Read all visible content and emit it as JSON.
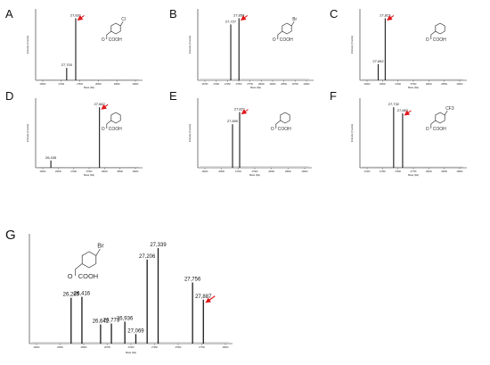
{
  "colors": {
    "peak": "#1a1a1a",
    "arrow": "#e0161c",
    "axis": "#222222",
    "label": "#111111",
    "structure": "#333333"
  },
  "chart_data": [
    {
      "panel": "A",
      "type": "bar",
      "xlabel": "Mass (Da)",
      "ylabel": "Intensity (Counts)",
      "xlim": [
        27250,
        28800
      ],
      "ylim": [
        0,
        1.15
      ],
      "ticks": [
        "26500",
        "27000",
        "27500",
        "28000",
        "28500",
        "29000"
      ],
      "structure_label": "COOH",
      "substituent": "Cl",
      "peaks": [
        {
          "x": 27700,
          "y": 0.2,
          "label": "27,700"
        },
        {
          "x": 27831,
          "y": 1.0,
          "label": "27,831",
          "arrow": true
        }
      ]
    },
    {
      "panel": "B",
      "type": "bar",
      "xlabel": "Mass (Da)",
      "ylabel": "Intensity (Counts)",
      "xlim": [
        27200,
        29050
      ],
      "ylim": [
        0,
        1.15
      ],
      "ticks": [
        "26750",
        "27000",
        "27250",
        "27500",
        "27750",
        "28000",
        "28250",
        "28500",
        "28750",
        "29000"
      ],
      "structure_label": "COOH",
      "substituent": "Br",
      "peaks": [
        {
          "x": 27727,
          "y": 0.9,
          "label": "27,727"
        },
        {
          "x": 27858,
          "y": 1.0,
          "label": "27,858",
          "arrow": true
        }
      ]
    },
    {
      "panel": "C",
      "type": "bar",
      "xlabel": "Mass (Da)",
      "ylabel": "Intensity (Counts)",
      "xlim": [
        27350,
        29350
      ],
      "ylim": [
        0,
        1.15
      ],
      "ticks": [
        "26000",
        "26500",
        "27000",
        "27500",
        "28000",
        "28500",
        "29000"
      ],
      "structure_label": "COOH",
      "substituent": "",
      "peaks": [
        {
          "x": 27692,
          "y": 0.26,
          "label": "27,692"
        },
        {
          "x": 27823,
          "y": 1.0,
          "label": "27,823",
          "arrow": true
        }
      ]
    },
    {
      "panel": "D",
      "type": "bar",
      "xlabel": "Mass (Da)",
      "ylabel": "Intensity (Counts)",
      "xlim": [
        26050,
        28750
      ],
      "ylim": [
        0,
        1.15
      ],
      "ticks": [
        "26000",
        "26500",
        "27000",
        "27500",
        "28000",
        "28500",
        "29000"
      ],
      "structure_label": "COOH",
      "substituent": "",
      "peaks": [
        {
          "x": 26435,
          "y": 0.12,
          "label": "26,435"
        },
        {
          "x": 27662,
          "y": 1.0,
          "label": "27,662",
          "arrow": true
        }
      ]
    },
    {
      "panel": "E",
      "type": "bar",
      "xlabel": "Mass (Da)",
      "ylabel": "Intensity (Counts)",
      "xlim": [
        27050,
        29150
      ],
      "ylim": [
        0,
        1.15
      ],
      "ticks": [
        "26000",
        "26500",
        "27000",
        "27500",
        "28000",
        "28500",
        "29000"
      ],
      "structure_label": "COOH",
      "substituent": "",
      "peaks": [
        {
          "x": 27690,
          "y": 0.72,
          "label": "27,690"
        },
        {
          "x": 27821,
          "y": 0.92,
          "label": "27,821",
          "arrow": true
        }
      ]
    },
    {
      "panel": "F",
      "type": "bar",
      "xlabel": "Mass (Da)",
      "ylabel": "Intensity (Counts)",
      "xlim": [
        27240,
        28800
      ],
      "ylim": [
        0,
        1.15
      ],
      "ticks": [
        "27000",
        "27250",
        "27500",
        "27750",
        "28000",
        "28250",
        "28500"
      ],
      "structure_label": "COOH",
      "substituent": "CF3",
      "peaks": [
        {
          "x": 27732,
          "y": 1.0,
          "label": "27,732"
        },
        {
          "x": 27863,
          "y": 0.9,
          "label": "27,863",
          "arrow": true
        }
      ]
    },
    {
      "panel": "G",
      "type": "bar",
      "xlabel": "Mass (Da)",
      "ylabel": "",
      "xlim": [
        25780,
        28240
      ],
      "ylim": [
        0,
        1.15
      ],
      "ticks": [
        "26000",
        "26250",
        "26500",
        "26750",
        "27000",
        "27250",
        "27500",
        "27750",
        "28000"
      ],
      "structure_label": "COOH",
      "substituent": "Br",
      "peaks": [
        {
          "x": 26285,
          "y": 0.48,
          "label": "26,285"
        },
        {
          "x": 26416,
          "y": 0.49,
          "label": "26,416"
        },
        {
          "x": 26642,
          "y": 0.2,
          "label": "26,642"
        },
        {
          "x": 26773,
          "y": 0.21,
          "label": "26,773"
        },
        {
          "x": 26936,
          "y": 0.23,
          "label": "26,936"
        },
        {
          "x": 27069,
          "y": 0.1,
          "label": "27,069"
        },
        {
          "x": 27206,
          "y": 0.88,
          "label": "27,206"
        },
        {
          "x": 27339,
          "y": 1.0,
          "label": "27,339"
        },
        {
          "x": 27756,
          "y": 0.64,
          "label": "27,756"
        },
        {
          "x": 27887,
          "y": 0.46,
          "label": "27,887",
          "arrow": true
        }
      ]
    }
  ]
}
